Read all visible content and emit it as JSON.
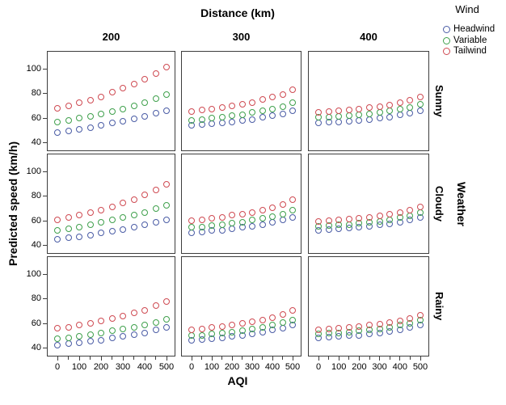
{
  "accent_colors": {
    "headwind_blue": "#4a5ca5",
    "variable_green": "#3fa04c",
    "tailwind_red": "#cf4a52",
    "frame_gray": "#3d3d3d"
  },
  "chart_data": {
    "type": "scatter",
    "facet_col_title": "Distance (km)",
    "facet_col_labels": [
      "200",
      "300",
      "400"
    ],
    "facet_row_title": "Weather",
    "facet_row_labels": [
      "Sunny",
      "Cloudy",
      "Rainy"
    ],
    "xlabel": "AQI",
    "ylabel": "Predicted speed (km/h)",
    "x": [
      0,
      50,
      100,
      150,
      200,
      250,
      300,
      350,
      400,
      450,
      500
    ],
    "x_major_ticks": [
      0,
      100,
      200,
      300,
      400,
      500
    ],
    "x_minor_ticks": [
      50,
      150,
      250,
      350,
      450
    ],
    "y_ticks": [
      40,
      60,
      80,
      100
    ],
    "ylim": [
      33,
      115
    ],
    "xlim": [
      0,
      500
    ],
    "grid": false,
    "legend": {
      "title": "Wind",
      "position": "top-right",
      "entries": [
        {
          "label": "Headwind",
          "color": "#4a5ca5"
        },
        {
          "label": "Variable",
          "color": "#3fa04c"
        },
        {
          "label": "Tailwind",
          "color": "#cf4a52"
        }
      ]
    },
    "panels": [
      {
        "row": "Sunny",
        "col": "200",
        "series": [
          {
            "name": "Headwind",
            "color": "#4a5ca5",
            "values": [
              48.5,
              49.5,
              51,
              52.5,
              54,
              56,
              57.5,
              59.5,
              61.5,
              64,
              66
            ]
          },
          {
            "name": "Variable",
            "color": "#3fa04c",
            "values": [
              57,
              58,
              60,
              61.5,
              63.5,
              65.5,
              67.5,
              70,
              73,
              76,
              79.5
            ]
          },
          {
            "name": "Tailwind",
            "color": "#cf4a52",
            "values": [
              68,
              70,
              72.5,
              74.5,
              77.5,
              81,
              84.5,
              88,
              92,
              96.5,
              101.5
            ]
          }
        ]
      },
      {
        "row": "Sunny",
        "col": "300",
        "series": [
          {
            "name": "Headwind",
            "color": "#4a5ca5",
            "values": [
              54,
              54.5,
              55.5,
              56,
              57,
              58,
              59,
              60.5,
              62,
              63.5,
              66
            ]
          },
          {
            "name": "Variable",
            "color": "#3fa04c",
            "values": [
              58,
              59,
              60,
              61,
              62,
              63,
              64.5,
              66,
              67.5,
              69.5,
              72.5
            ]
          },
          {
            "name": "Tailwind",
            "color": "#cf4a52",
            "values": [
              65.5,
              66.5,
              67.5,
              69,
              70,
              71.5,
              73,
              75,
              77,
              79.5,
              83.5
            ]
          }
        ]
      },
      {
        "row": "Sunny",
        "col": "400",
        "series": [
          {
            "name": "Headwind",
            "color": "#4a5ca5",
            "values": [
              56,
              56.5,
              57,
              57.5,
              58,
              59,
              60,
              61,
              62.5,
              64,
              66
            ]
          },
          {
            "name": "Variable",
            "color": "#3fa04c",
            "values": [
              60.5,
              61,
              61.5,
              62,
              63,
              63.5,
              64.5,
              66,
              67.5,
              69,
              71.5
            ]
          },
          {
            "name": "Tailwind",
            "color": "#cf4a52",
            "values": [
              65,
              65.5,
              66,
              67,
              67.5,
              68.5,
              69.5,
              71,
              72.5,
              74.5,
              77
            ]
          }
        ]
      },
      {
        "row": "Cloudy",
        "col": "200",
        "series": [
          {
            "name": "Headwind",
            "color": "#4a5ca5",
            "values": [
              45,
              46,
              47,
              48.5,
              50,
              51.5,
              53,
              54.5,
              56.5,
              58.5,
              60.5
            ]
          },
          {
            "name": "Variable",
            "color": "#3fa04c",
            "values": [
              52.5,
              53.5,
              55,
              56.5,
              58.5,
              60.5,
              62.5,
              64.5,
              67,
              70,
              73
            ]
          },
          {
            "name": "Tailwind",
            "color": "#cf4a52",
            "values": [
              61,
              62.5,
              64.5,
              66.5,
              69,
              71.5,
              74.5,
              77.5,
              81,
              85.5,
              90
            ]
          }
        ]
      },
      {
        "row": "Cloudy",
        "col": "300",
        "series": [
          {
            "name": "Headwind",
            "color": "#4a5ca5",
            "values": [
              50.5,
              51,
              52,
              52.5,
              53.5,
              54.5,
              55.5,
              57,
              58.5,
              60.5,
              63
            ]
          },
          {
            "name": "Variable",
            "color": "#3fa04c",
            "values": [
              54.5,
              55,
              56,
              57,
              58,
              59,
              60.5,
              62,
              63.5,
              65.5,
              68.5
            ]
          },
          {
            "name": "Tailwind",
            "color": "#cf4a52",
            "values": [
              60,
              61,
              62,
              63,
              64.5,
              65.5,
              67,
              69,
              71,
              73.5,
              77.5
            ]
          }
        ]
      },
      {
        "row": "Cloudy",
        "col": "400",
        "series": [
          {
            "name": "Headwind",
            "color": "#4a5ca5",
            "values": [
              52.5,
              53,
              53.5,
              54,
              54.5,
              55.5,
              56.5,
              57.5,
              59,
              60.5,
              62.5
            ]
          },
          {
            "name": "Variable",
            "color": "#3fa04c",
            "values": [
              55.5,
              56,
              56.5,
              57,
              58,
              58.5,
              59.5,
              61,
              62.5,
              64,
              66.5
            ]
          },
          {
            "name": "Tailwind",
            "color": "#cf4a52",
            "values": [
              59.5,
              60,
              60.5,
              61.5,
              62,
              63,
              64,
              65.5,
              67,
              69,
              71.5
            ]
          }
        ]
      },
      {
        "row": "Rainy",
        "col": "200",
        "series": [
          {
            "name": "Headwind",
            "color": "#4a5ca5",
            "values": [
              42.5,
              43.5,
              44.5,
              45.5,
              46.5,
              48,
              49.5,
              51,
              52.5,
              54.5,
              56.5
            ]
          },
          {
            "name": "Variable",
            "color": "#3fa04c",
            "values": [
              47.5,
              48.5,
              49.5,
              51,
              52.5,
              54,
              55.5,
              57,
              59,
              61,
              63.5
            ]
          },
          {
            "name": "Tailwind",
            "color": "#cf4a52",
            "values": [
              56,
              57,
              58.5,
              60,
              62,
              64,
              66,
              68.5,
              71,
              74.5,
              78
            ]
          }
        ]
      },
      {
        "row": "Rainy",
        "col": "300",
        "series": [
          {
            "name": "Headwind",
            "color": "#4a5ca5",
            "values": [
              46.5,
              47,
              47.5,
              48.5,
              49.5,
              50.5,
              51.5,
              53,
              54.5,
              56,
              58.5
            ]
          },
          {
            "name": "Variable",
            "color": "#3fa04c",
            "values": [
              50,
              50.5,
              51.5,
              52,
              53,
              54,
              55.5,
              57,
              58.5,
              60.5,
              63
            ]
          },
          {
            "name": "Tailwind",
            "color": "#cf4a52",
            "values": [
              55,
              55.5,
              56.5,
              57.5,
              58.5,
              60,
              61.5,
              63,
              65,
              67.5,
              71
            ]
          }
        ]
      },
      {
        "row": "Rainy",
        "col": "400",
        "series": [
          {
            "name": "Headwind",
            "color": "#4a5ca5",
            "values": [
              48.5,
              49,
              49.5,
              50,
              50.5,
              51.5,
              52.5,
              53.5,
              55,
              56.5,
              59
            ]
          },
          {
            "name": "Variable",
            "color": "#3fa04c",
            "values": [
              51.5,
              52,
              52.5,
              53,
              54,
              54.5,
              55.5,
              57,
              58.5,
              60,
              62.5
            ]
          },
          {
            "name": "Tailwind",
            "color": "#cf4a52",
            "values": [
              55,
              55.5,
              56,
              56.5,
              57.5,
              58.5,
              59.5,
              60.5,
              62,
              64,
              66.5
            ]
          }
        ]
      }
    ]
  }
}
